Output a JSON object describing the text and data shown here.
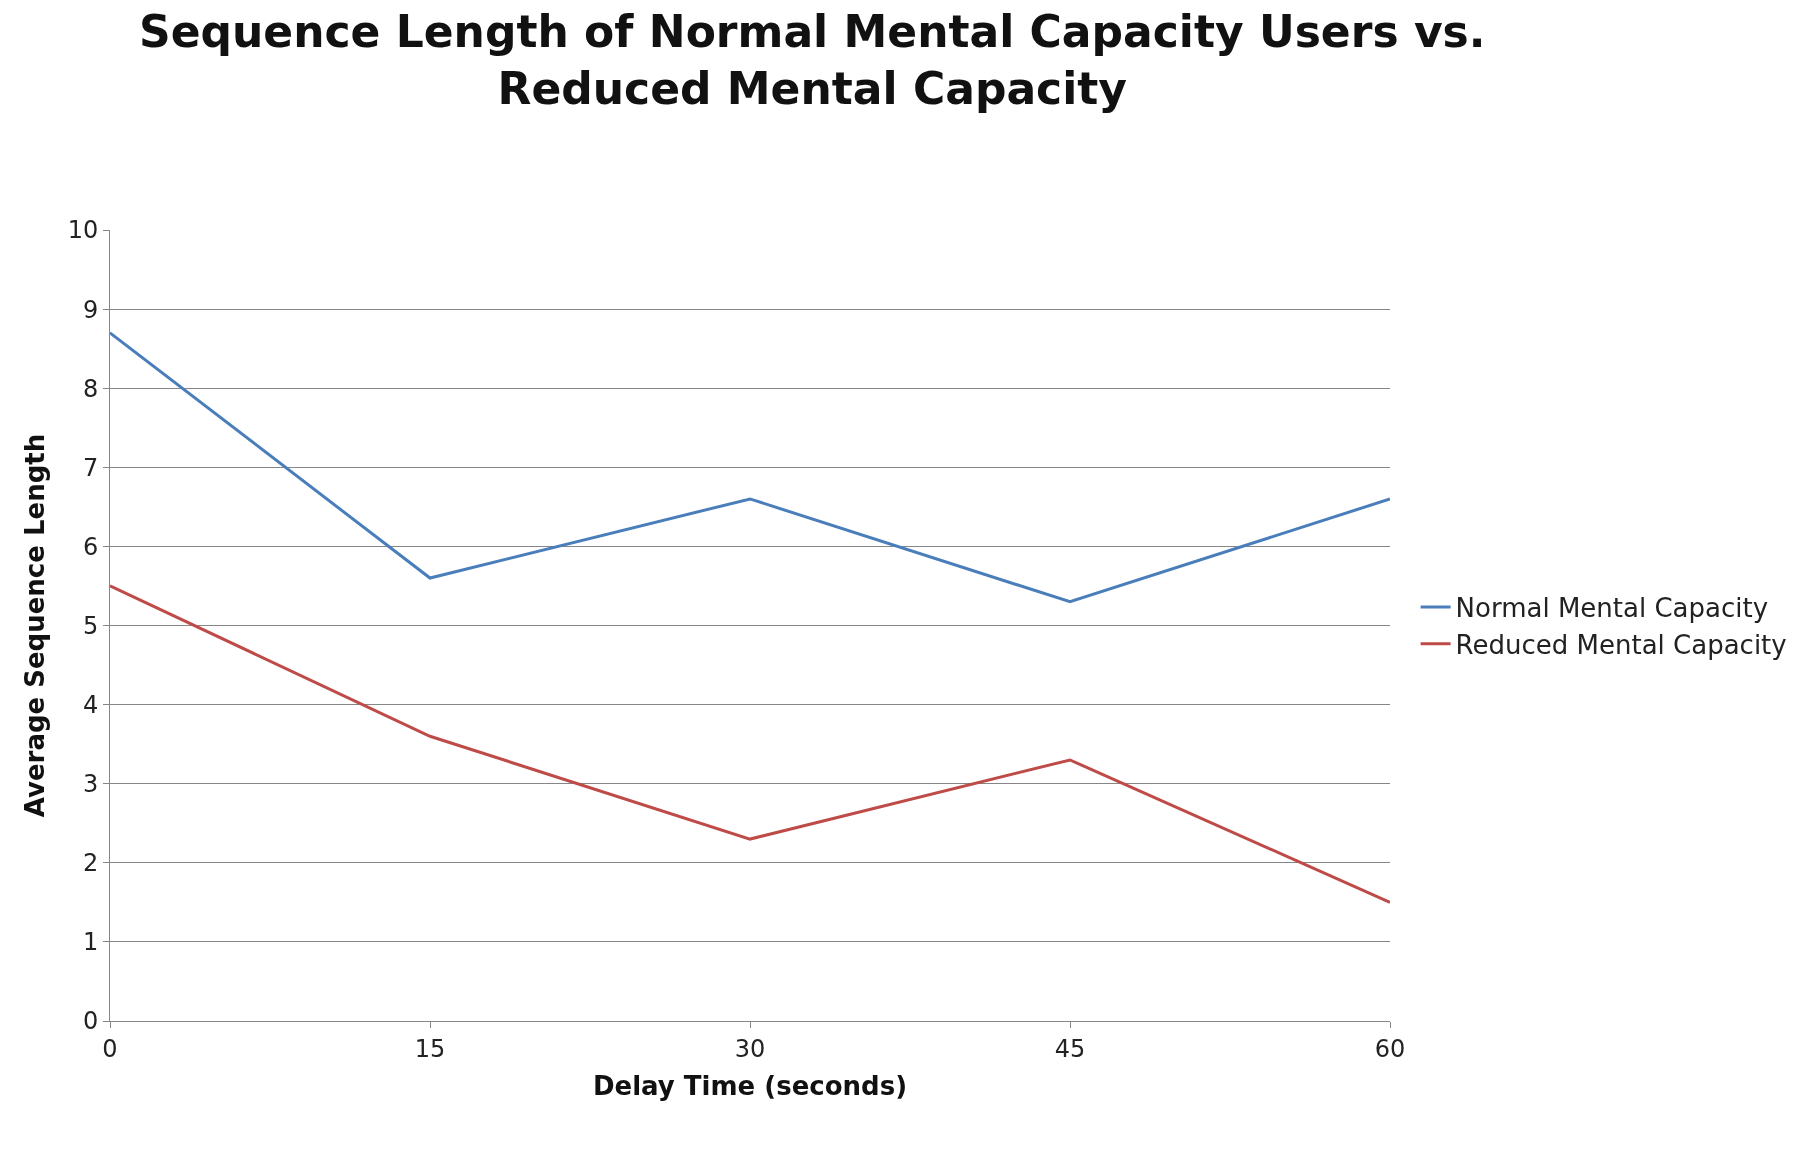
{
  "chart_data": {
    "type": "line",
    "title": "Sequence Length of Normal Mental Capacity Users vs. Reduced Mental Capacity",
    "xlabel": "Delay Time (seconds)",
    "ylabel": "Average Sequence Length",
    "x": [
      0,
      15,
      30,
      45,
      60
    ],
    "series": [
      {
        "name": "Normal Mental Capacity",
        "color": "#4a7ebb",
        "values": [
          8.7,
          5.6,
          6.6,
          5.3,
          6.6
        ]
      },
      {
        "name": "Reduced Mental Capacity",
        "color": "#be4b48",
        "values": [
          5.5,
          3.6,
          2.3,
          3.3,
          1.5
        ]
      }
    ],
    "xlim": [
      0,
      60
    ],
    "xticks": [
      0,
      15,
      30,
      45,
      60
    ],
    "ylim": [
      0,
      10
    ],
    "yticks": [
      0,
      1,
      2,
      3,
      4,
      5,
      6,
      7,
      8,
      9,
      10
    ],
    "grid": "y",
    "legend": "right",
    "marker": "none",
    "line_style": "solid"
  }
}
